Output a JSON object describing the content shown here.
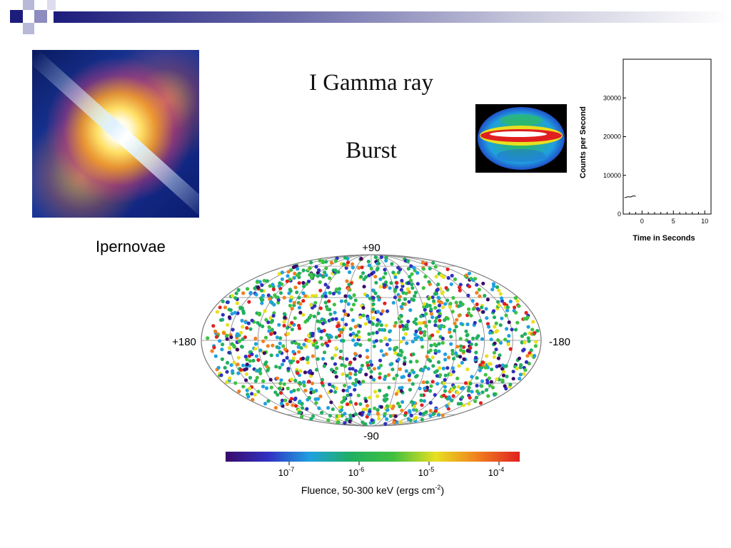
{
  "slide": {
    "title_line1": "I Gamma ray",
    "title_line2": "Burst",
    "photo_caption": "Ipernovae"
  },
  "colors": {
    "header_dark": "#1c1c7c",
    "header_light": "#8c8cc0"
  },
  "chart_data": [
    {
      "type": "line",
      "xlabel": "Time in Seconds",
      "ylabel": "Counts per Second",
      "x_ticks": [
        "0",
        "5",
        "10"
      ],
      "y_ticks": [
        "0",
        "10000",
        "20000",
        "30000"
      ],
      "xlim": [
        -3,
        11
      ],
      "ylim": [
        0,
        40000
      ],
      "series": [
        {
          "x": [
            -2.8,
            -2.2,
            -1.8,
            -1.4,
            -1.0
          ],
          "y": [
            4200,
            4500,
            4400,
            4700,
            4600
          ]
        }
      ]
    },
    {
      "type": "scatter",
      "xlabel": "Fluence, 50-300 keV (ergs cm",
      "xlabel_sup": "-2",
      "xlabel_end": ")",
      "axis_labels": {
        "top": "+90",
        "bottom": "-90",
        "left": "+180",
        "right": "-180"
      },
      "colorbar_ticks": [
        {
          "base": "10",
          "exp": "-7"
        },
        {
          "base": "10",
          "exp": "-6"
        },
        {
          "base": "10",
          "exp": "-5"
        },
        {
          "base": "10",
          "exp": "-4"
        }
      ],
      "colorbar_colors": [
        "#3a0a6a",
        "#3030c0",
        "#20a0e0",
        "#20b060",
        "#40c040",
        "#e8e020",
        "#f08020",
        "#e02020"
      ],
      "projection": "aitoff",
      "grid": true
    }
  ]
}
